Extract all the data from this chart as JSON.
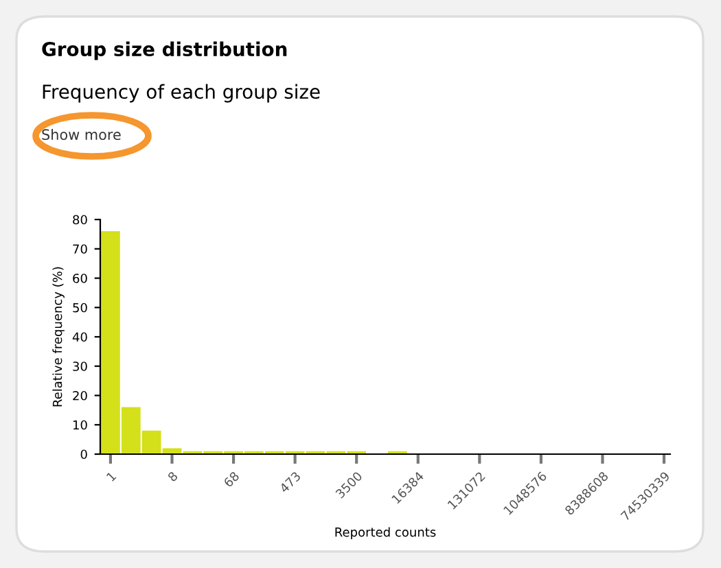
{
  "chart_data": {
    "type": "bar",
    "title": "Group size distribution",
    "subtitle": "Frequency of each group size",
    "annotations": [
      "Show more"
    ],
    "xlabel": "Reported counts",
    "ylabel": "Relative frequency (%)",
    "categories": [
      "1",
      null,
      null,
      "8",
      null,
      null,
      "68",
      null,
      null,
      "473",
      null,
      null,
      "3500",
      null,
      null,
      "16384",
      null,
      null,
      "131072",
      null,
      null,
      "1048576",
      null,
      null,
      "8388608",
      null,
      null,
      "74530339"
    ],
    "values": [
      76,
      16,
      8,
      2,
      1,
      1,
      1,
      1,
      1,
      1,
      1,
      1,
      1,
      null,
      1,
      null,
      null,
      null,
      null,
      null,
      null,
      null,
      null,
      null,
      null,
      null,
      null,
      null
    ],
    "color": "#d4e01a",
    "ylim": [
      0,
      80
    ],
    "yticks": [
      0,
      10,
      20,
      30,
      40,
      50,
      60,
      70,
      80
    ]
  }
}
